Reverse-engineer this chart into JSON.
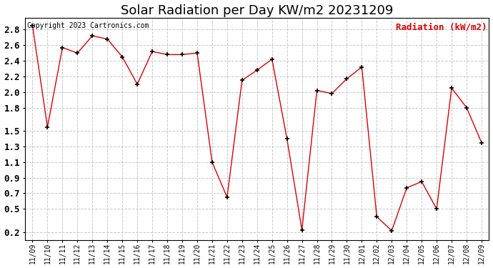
{
  "title": "Solar Radiation per Day KW/m2 20231209",
  "copyright_text": "Copyright 2023 Cartronics.com",
  "legend_label": "Radiation (kW/m2)",
  "dates": [
    "11/09",
    "11/10",
    "11/11",
    "11/12",
    "11/13",
    "11/14",
    "11/15",
    "11/16",
    "11/17",
    "11/18",
    "11/19",
    "11/20",
    "11/21",
    "11/22",
    "11/23",
    "11/24",
    "11/25",
    "11/26",
    "11/27",
    "11/28",
    "11/29",
    "11/30",
    "12/01",
    "12/02",
    "12/03",
    "12/04",
    "12/05",
    "12/06",
    "12/07",
    "12/08",
    "12/09"
  ],
  "values": [
    2.85,
    1.55,
    2.57,
    2.5,
    2.72,
    2.68,
    2.45,
    2.1,
    2.52,
    2.48,
    2.48,
    2.5,
    1.1,
    0.65,
    2.15,
    2.28,
    2.42,
    1.4,
    0.23,
    2.02,
    1.98,
    2.17,
    2.32,
    0.4,
    0.22,
    0.77,
    0.85,
    0.5,
    2.05,
    1.8,
    1.35
  ],
  "line_color": "#dd0000",
  "marker": "+",
  "marker_size": 5,
  "marker_edge_width": 1.2,
  "line_width": 1.0,
  "ylim": [
    0.1,
    2.95
  ],
  "yticks": [
    0.2,
    0.5,
    0.7,
    0.9,
    1.1,
    1.3,
    1.5,
    1.8,
    2.0,
    2.2,
    2.4,
    2.6,
    2.8
  ],
  "grid_color": "#bbbbbb",
  "grid_linestyle": "--",
  "bg_color": "#ffffff",
  "title_fontsize": 13,
  "copyright_fontsize": 7,
  "legend_fontsize": 9,
  "tick_fontsize": 7,
  "ytick_fontsize": 9
}
